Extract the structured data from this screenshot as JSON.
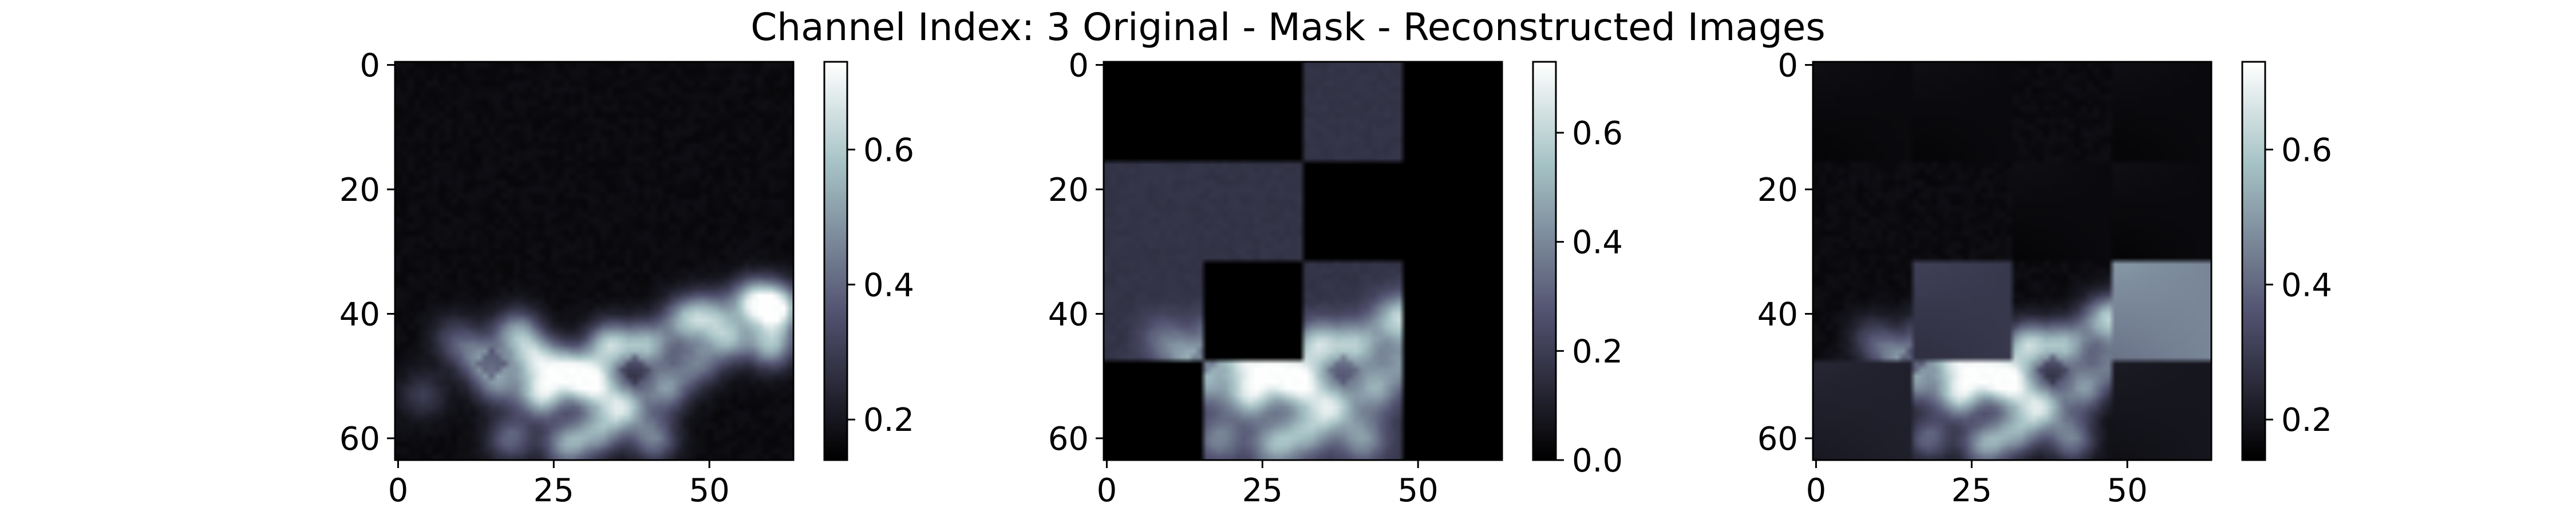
{
  "figure": {
    "title": "Channel Index: 3 Original - Mask - Reconstructed Images"
  },
  "chart_data": [
    {
      "type": "heatmap",
      "panel": "original",
      "colormap": "bone",
      "grid_size": [
        64,
        64
      ],
      "xlim": [
        0,
        63
      ],
      "ylim": [
        63,
        0
      ],
      "x_ticks": [
        0,
        25,
        50
      ],
      "y_ticks": [
        0,
        20,
        40,
        60
      ],
      "colorbar": {
        "range": [
          0.14,
          0.73
        ],
        "ticks": [
          0.2,
          0.4,
          0.6
        ],
        "tick_labels": [
          "0.2",
          "0.4",
          "0.6"
        ]
      },
      "background_value": 0.17,
      "blobs": [
        {
          "x": 4,
          "y": 53,
          "v": 0.3
        },
        {
          "x": 9,
          "y": 44,
          "v": 0.33
        },
        {
          "x": 13,
          "y": 47,
          "v": 0.42
        },
        {
          "x": 16,
          "y": 51,
          "v": 0.45
        },
        {
          "x": 19,
          "y": 43,
          "v": 0.5
        },
        {
          "x": 22,
          "y": 47,
          "v": 0.55
        },
        {
          "x": 23,
          "y": 53,
          "v": 0.62
        },
        {
          "x": 27,
          "y": 49,
          "v": 0.58
        },
        {
          "x": 31,
          "y": 51,
          "v": 0.7
        },
        {
          "x": 34,
          "y": 45,
          "v": 0.6
        },
        {
          "x": 36,
          "y": 55,
          "v": 0.62
        },
        {
          "x": 40,
          "y": 45,
          "v": 0.55
        },
        {
          "x": 43,
          "y": 52,
          "v": 0.48
        },
        {
          "x": 46,
          "y": 41,
          "v": 0.5
        },
        {
          "x": 50,
          "y": 40,
          "v": 0.45
        },
        {
          "x": 53,
          "y": 44,
          "v": 0.52
        },
        {
          "x": 57,
          "y": 38,
          "v": 0.6
        },
        {
          "x": 61,
          "y": 39,
          "v": 0.68
        },
        {
          "x": 60,
          "y": 45,
          "v": 0.55
        },
        {
          "x": 27,
          "y": 61,
          "v": 0.5
        },
        {
          "x": 32,
          "y": 59,
          "v": 0.48
        },
        {
          "x": 41,
          "y": 60,
          "v": 0.45
        },
        {
          "x": 18,
          "y": 60,
          "v": 0.4
        },
        {
          "x": 48,
          "y": 48,
          "v": 0.42
        }
      ],
      "ring_centers": [
        {
          "x": 15,
          "y": 48
        },
        {
          "x": 38,
          "y": 49
        }
      ]
    },
    {
      "type": "heatmap",
      "panel": "mask",
      "colormap": "bone",
      "grid_size": [
        64,
        64
      ],
      "xlim": [
        0,
        63
      ],
      "ylim": [
        63,
        0
      ],
      "x_ticks": [
        0,
        25,
        50
      ],
      "y_ticks": [
        0,
        20,
        40,
        60
      ],
      "colorbar": {
        "range": [
          0.0,
          0.73
        ],
        "ticks": [
          0.0,
          0.2,
          0.4,
          0.6
        ],
        "tick_labels": [
          "0.0",
          "0.2",
          "0.4",
          "0.6"
        ]
      },
      "patch_size": 16,
      "visible_patches": [
        [
          0,
          2
        ],
        [
          1,
          0
        ],
        [
          1,
          1
        ],
        [
          2,
          0
        ],
        [
          2,
          2
        ],
        [
          3,
          1
        ],
        [
          3,
          2
        ]
      ]
    },
    {
      "type": "heatmap",
      "panel": "reconstructed",
      "colormap": "bone",
      "grid_size": [
        64,
        64
      ],
      "xlim": [
        0,
        63
      ],
      "ylim": [
        63,
        0
      ],
      "x_ticks": [
        0,
        25,
        50
      ],
      "y_ticks": [
        0,
        20,
        40,
        60
      ],
      "colorbar": {
        "range": [
          0.14,
          0.73
        ],
        "ticks": [
          0.2,
          0.4,
          0.6
        ],
        "tick_labels": [
          "0.2",
          "0.4",
          "0.6"
        ]
      },
      "patch_size": 16,
      "reconstructed_patches": [
        [
          0,
          0
        ],
        [
          0,
          1
        ],
        [
          0,
          3
        ],
        [
          1,
          2
        ],
        [
          1,
          3
        ],
        [
          2,
          1
        ],
        [
          2,
          3
        ],
        [
          3,
          0
        ],
        [
          3,
          3
        ]
      ]
    }
  ]
}
